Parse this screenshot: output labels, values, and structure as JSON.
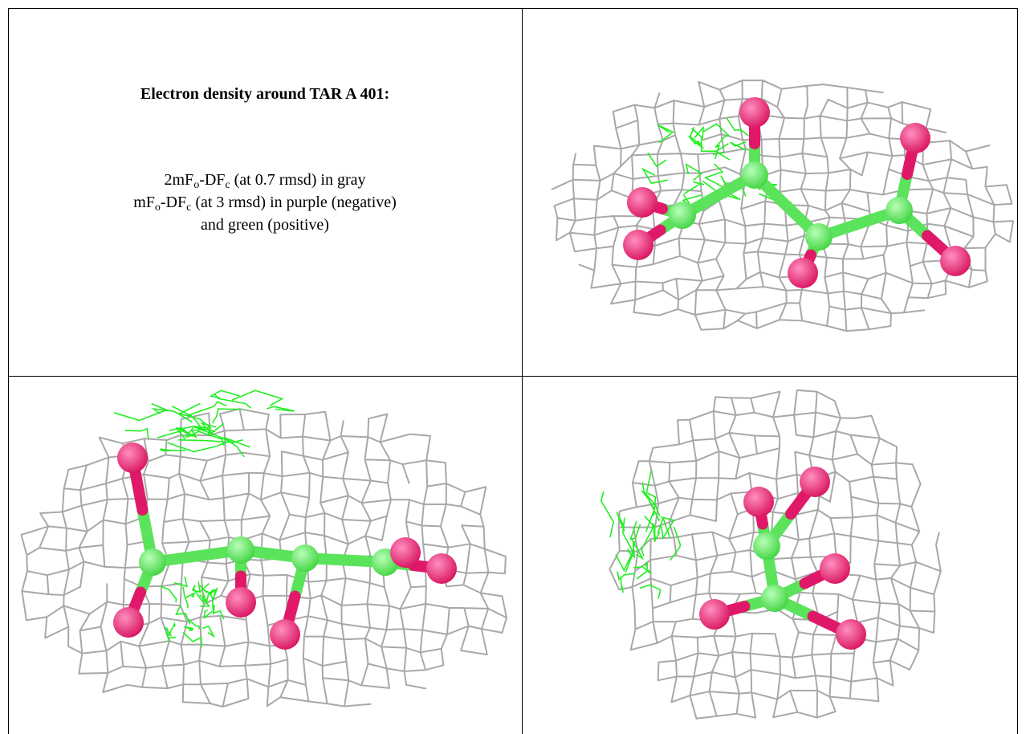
{
  "caption": {
    "title": "Electron density around TAR A 401:",
    "lines": [
      [
        "2mF",
        "o",
        "-DF",
        "c",
        " (at 0.7 rmsd) in gray"
      ],
      [
        "mF",
        "o",
        "-DF",
        "c",
        " (at 3 rmsd) in purple (negative)"
      ],
      [
        "and green (positive)"
      ]
    ]
  }
}
